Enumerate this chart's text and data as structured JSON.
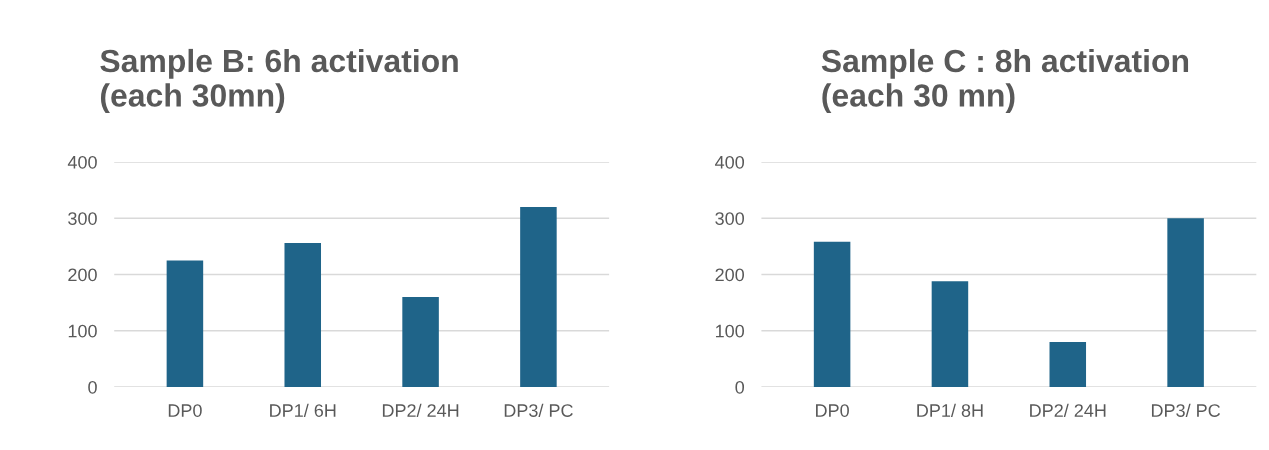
{
  "chart_data": [
    {
      "type": "bar",
      "title": "Sample B: 6h activation\n(each 30mn)",
      "categories": [
        "DP0",
        "DP1/ 6H",
        "DP2/ 24H",
        "DP3/ PC"
      ],
      "values": [
        225,
        256,
        160,
        320
      ],
      "color": "#1f6489",
      "ylim": [
        0,
        400
      ],
      "yticks": [
        0,
        100,
        200,
        300,
        400
      ],
      "grid": "y"
    },
    {
      "type": "bar",
      "title": "Sample C : 8h activation\n(each 30 mn)",
      "categories": [
        "DP0",
        "DP1/ 8H",
        "DP2/ 24H",
        "DP3/ PC"
      ],
      "values": [
        258,
        188,
        80,
        300
      ],
      "color": "#1f6489",
      "ylim": [
        0,
        400
      ],
      "yticks": [
        0,
        100,
        200,
        300,
        400
      ],
      "grid": "y"
    }
  ]
}
